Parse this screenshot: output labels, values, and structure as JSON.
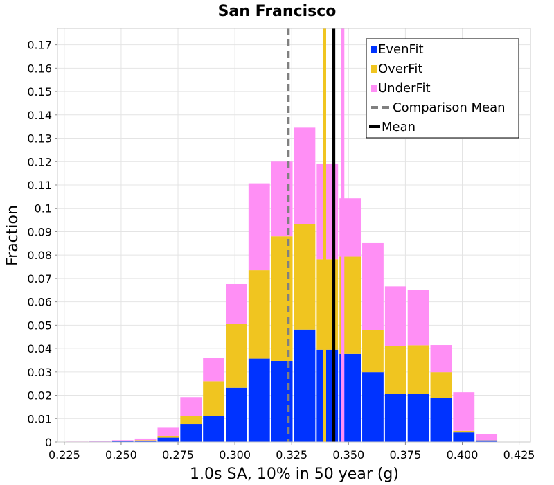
{
  "chart_data": {
    "type": "bar",
    "stacked": true,
    "title": "San Francisco",
    "xlabel": "1.0s SA, 10% in 50 year (g)",
    "ylabel": "Fraction",
    "xlim": [
      0.222,
      0.43
    ],
    "ylim": [
      0,
      0.177
    ],
    "grid": true,
    "legend_position": "top-right",
    "x_ticks": [
      "0.225",
      "0.250",
      "0.275",
      "0.300",
      "0.325",
      "0.350",
      "0.375",
      "0.400",
      "0.425"
    ],
    "y_ticks": [
      "0",
      "0.01",
      "0.02",
      "0.03",
      "0.04",
      "0.05",
      "0.06",
      "0.07",
      "0.08",
      "0.09",
      "0.1",
      "0.11",
      "0.12",
      "0.13",
      "0.14",
      "0.15",
      "0.16",
      "0.17"
    ],
    "bin_width": 0.01,
    "bin_centers": [
      0.2307,
      0.2407,
      0.2507,
      0.2607,
      0.2707,
      0.2807,
      0.2907,
      0.3007,
      0.3107,
      0.3207,
      0.3307,
      0.3407,
      0.3507,
      0.3607,
      0.3707,
      0.3807,
      0.3907,
      0.4007,
      0.4107
    ],
    "series": [
      {
        "name": "EvenFit",
        "color": "#0033ff",
        "values": [
          0.0001,
          0.0002,
          0.0003,
          0.0006,
          0.0019,
          0.0077,
          0.0112,
          0.0232,
          0.0357,
          0.0347,
          0.0481,
          0.0395,
          0.0377,
          0.0299,
          0.0207,
          0.0207,
          0.0187,
          0.0041,
          0.0007
        ]
      },
      {
        "name": "OverFit",
        "color": "#f0c520",
        "values": [
          0,
          0,
          0.0001,
          0.0002,
          0.0006,
          0.0034,
          0.0148,
          0.0272,
          0.0378,
          0.0533,
          0.0452,
          0.0387,
          0.0416,
          0.0179,
          0.0204,
          0.0207,
          0.0112,
          0.0007,
          0.0001
        ]
      },
      {
        "name": "UnderFit",
        "color": "#ff8ff5",
        "values": [
          0.0001,
          0.0002,
          0.0004,
          0.0007,
          0.0036,
          0.0081,
          0.01,
          0.0172,
          0.0372,
          0.032,
          0.0412,
          0.041,
          0.025,
          0.0376,
          0.0255,
          0.0238,
          0.0116,
          0.0165,
          0.0026
        ]
      }
    ],
    "vertical_lines": [
      {
        "name": "OverFit",
        "value": 0.3394,
        "color": "#f0c520",
        "style": "solid"
      },
      {
        "name": "UnderFit",
        "value": 0.3474,
        "color": "#ff8ff5",
        "style": "solid"
      },
      {
        "name": "Comparison Mean",
        "value": 0.3235,
        "color": "#808080",
        "style": "dashed"
      },
      {
        "name": "Mean",
        "value": 0.3434,
        "color": "#000000",
        "style": "solid"
      }
    ],
    "legend": [
      {
        "label": "EvenFit",
        "color": "#0033ff",
        "kind": "box"
      },
      {
        "label": "OverFit",
        "color": "#f0c520",
        "kind": "box"
      },
      {
        "label": "UnderFit",
        "color": "#ff8ff5",
        "kind": "box"
      },
      {
        "label": "Comparison Mean",
        "color": "#808080",
        "kind": "dashed-line"
      },
      {
        "label": "Mean",
        "color": "#000000",
        "kind": "line"
      }
    ]
  }
}
